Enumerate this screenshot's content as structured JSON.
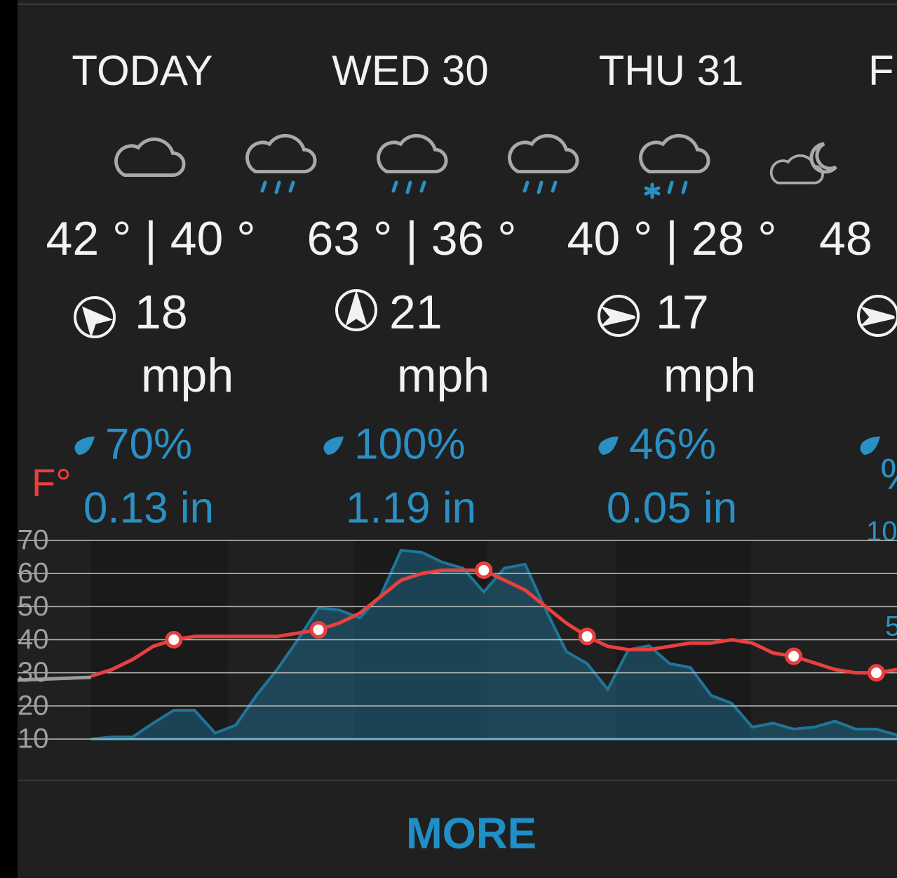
{
  "days": [
    {
      "label": "TODAY",
      "temps": "42 ° | 40 °",
      "wind": "18",
      "wind_unit": "mph",
      "precip_chance": "70%",
      "precip_amount": "0.13 in"
    },
    {
      "label": "WED 30",
      "temps": "63 ° | 36 °",
      "wind": "21",
      "wind_unit": "mph",
      "precip_chance": "100%",
      "precip_amount": "1.19 in"
    },
    {
      "label": "THU 31",
      "temps": "40 ° | 28 °",
      "wind": "17",
      "wind_unit": "mph",
      "precip_chance": "46%",
      "precip_amount": "0.05 in"
    },
    {
      "label": "F",
      "temps": "48",
      "precip_chance": "%"
    }
  ],
  "chart_data": {
    "type": "line",
    "y_label": "F°",
    "categories": [
      null,
      null,
      null,
      null,
      null,
      null,
      null,
      null,
      null,
      null,
      null,
      null,
      null,
      null,
      null,
      null,
      null,
      null,
      null,
      null,
      null,
      null,
      null,
      null,
      null,
      null,
      null,
      null,
      null,
      null,
      null,
      null,
      null,
      null,
      null,
      null,
      null,
      null,
      null,
      null
    ],
    "ylim": [
      10,
      70
    ],
    "yticks": [
      10,
      20,
      30,
      40,
      50,
      60,
      70
    ],
    "y2lim": [
      0,
      100
    ],
    "grid": true,
    "series": [
      {
        "type": "area",
        "axis": "y2",
        "color": "#1f7599",
        "values": [
          0,
          1,
          1,
          8,
          14.5,
          14.5,
          3,
          7,
          22,
          35,
          50,
          66,
          65,
          61,
          72,
          95,
          94,
          89,
          86,
          74,
          86,
          88,
          65,
          44,
          38,
          25,
          45,
          47,
          38,
          36,
          22,
          18,
          6,
          8,
          5,
          6,
          9,
          5,
          5,
          2
        ]
      },
      {
        "type": "line",
        "color": "#e8403f",
        "values": [
          29,
          31,
          34,
          38,
          40,
          41,
          41,
          41,
          41,
          41,
          42,
          43,
          45,
          48,
          53,
          58,
          60,
          61,
          61,
          61,
          58,
          55,
          50,
          45,
          41,
          38,
          37,
          37,
          38,
          39,
          39,
          40,
          39,
          36,
          35,
          33,
          31,
          30,
          30,
          31
        ]
      }
    ]
  },
  "right_axis_labels": [
    "10",
    "5"
  ],
  "button": "MORE"
}
